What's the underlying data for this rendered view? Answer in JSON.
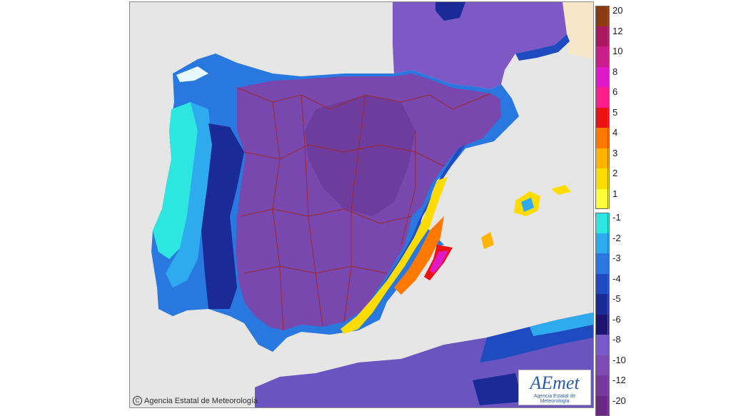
{
  "copyright": {
    "text": "Agencia Estatal de Meteorología",
    "icon": "copyright-icon"
  },
  "logo": {
    "word": "AEmet",
    "subtitle": "Agencia Estatal de Meteorología"
  },
  "legend": {
    "positive": [
      {
        "label": "20",
        "color": "#8b3a12"
      },
      {
        "label": "12",
        "color": "#a8185c"
      },
      {
        "label": "10",
        "color": "#c81e8c"
      },
      {
        "label": "8",
        "color": "#e018c8"
      },
      {
        "label": "6",
        "color": "#ff1e8c"
      },
      {
        "label": "5",
        "color": "#ee1111"
      },
      {
        "label": "4",
        "color": "#ff7800"
      },
      {
        "label": "3",
        "color": "#ffb400"
      },
      {
        "label": "2",
        "color": "#ffdc00"
      },
      {
        "label": "1",
        "color": "#ffff3c"
      }
    ],
    "negative": [
      {
        "label": "-1",
        "color": "#2ee6e0"
      },
      {
        "label": "-2",
        "color": "#2eaaee"
      },
      {
        "label": "-3",
        "color": "#2878e0"
      },
      {
        "label": "-4",
        "color": "#1e4cc0"
      },
      {
        "label": "-5",
        "color": "#1a2a96"
      },
      {
        "label": "-6",
        "color": "#1c1470"
      },
      {
        "label": "-8",
        "color": "#7a5ac8"
      },
      {
        "label": "-10",
        "color": "#7c4cb4"
      },
      {
        "label": "-12",
        "color": "#76389c"
      },
      {
        "label": "-20",
        "color": "#6a2884"
      }
    ]
  },
  "colors": {
    "sea": "#e6e6e6",
    "interior": "#7848ae",
    "interior_dark": "#6e3c9c",
    "borders": "#a0282a",
    "africa": "#6a55c0",
    "france": "#7e58c4",
    "pale": "#f8e6c8"
  }
}
